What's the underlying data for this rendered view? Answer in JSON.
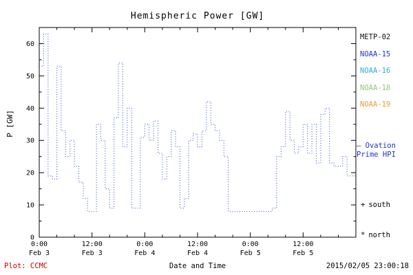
{
  "title": "Hemispheric Power [GW]",
  "legend": {
    "satellites": [
      {
        "label": "METP-02",
        "color": "#111111"
      },
      {
        "label": "NOAA-15",
        "color": "#2233cc"
      },
      {
        "label": "NOAA-16",
        "color": "#33aadd"
      },
      {
        "label": "NOAA-18",
        "color": "#88cc77"
      },
      {
        "label": "NOAA-19",
        "color": "#ee9933"
      }
    ],
    "series_note": {
      "line1": "— Ovation",
      "line2": "Prime HPI",
      "color": "#2233cc"
    },
    "markers": [
      {
        "symbol": "+",
        "label": "south"
      },
      {
        "symbol": "*",
        "label": "north"
      }
    ]
  },
  "footer": {
    "plot_credit": "Plot: CCMC",
    "credit_color": "#cc0000",
    "timestamp": "2015/02/05 23:00:18"
  },
  "chart_data": {
    "type": "line",
    "step": true,
    "line_style": "dotted",
    "line_color": "#3355cc",
    "title": "Hemispheric Power [GW]",
    "xlabel": "Date and Time",
    "ylabel": "P [GW]",
    "ylim": [
      0,
      65
    ],
    "x_domain": [
      0,
      72
    ],
    "x_unit": "hours since Feb 3 00:00",
    "y_ticks": [
      0,
      10,
      20,
      30,
      40,
      50,
      60
    ],
    "x_ticks": [
      {
        "hour": 0,
        "time": "0:00",
        "date": "Feb 3"
      },
      {
        "hour": 12,
        "time": "12:00",
        "date": "Feb 3"
      },
      {
        "hour": 24,
        "time": "0:00",
        "date": "Feb 4"
      },
      {
        "hour": 36,
        "time": "12:00",
        "date": "Feb 4"
      },
      {
        "hour": 48,
        "time": "0:00",
        "date": "Feb 5"
      },
      {
        "hour": 60,
        "time": "12:00",
        "date": "Feb 5"
      }
    ],
    "x_hours": [
      0,
      1,
      2,
      3,
      4,
      5,
      6,
      7,
      8,
      9,
      10,
      11,
      12,
      13,
      14,
      15,
      16,
      17,
      18,
      19,
      20,
      21,
      22,
      23,
      24,
      25,
      26,
      27,
      28,
      29,
      30,
      31,
      32,
      33,
      34,
      35,
      36,
      37,
      38,
      39,
      40,
      41,
      42,
      43,
      44,
      45,
      46,
      47,
      48,
      49,
      50,
      51,
      52,
      53,
      54,
      55,
      56,
      57,
      58,
      59,
      60,
      61,
      62,
      63,
      64,
      65,
      66,
      67,
      68,
      69,
      70,
      71
    ],
    "values": [
      53,
      63,
      19,
      18,
      53,
      33,
      25,
      30,
      22,
      17,
      12,
      8,
      8,
      35,
      30,
      15,
      9,
      37,
      54,
      28,
      40,
      9,
      9,
      31,
      35,
      30,
      36,
      26,
      18,
      25,
      33,
      28,
      9,
      12,
      30,
      32,
      28,
      33,
      42,
      35,
      33,
      30,
      25,
      8,
      8,
      8,
      8,
      8,
      8,
      8,
      8,
      8,
      8,
      9,
      25,
      28,
      39,
      30,
      26,
      28,
      35,
      26,
      35,
      23,
      38,
      40,
      23,
      22,
      22,
      25,
      19,
      19
    ]
  }
}
